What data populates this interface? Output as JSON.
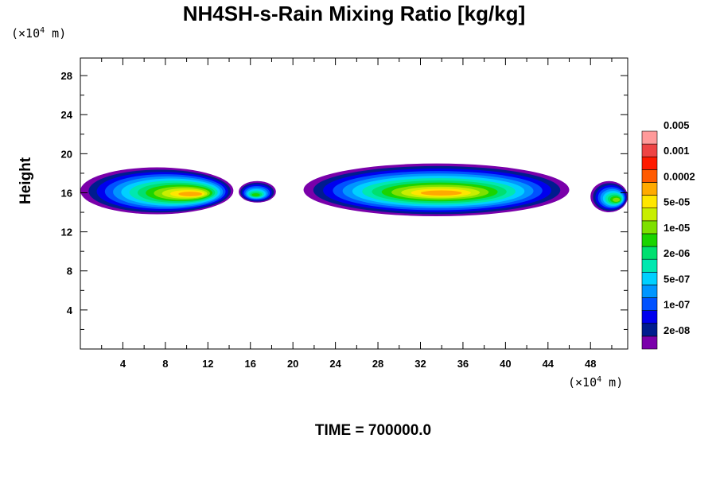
{
  "chart_data": {
    "type": "heatmap",
    "title": "NH4SH-s-Rain Mixing Ratio [kg/kg]",
    "ylabel": "Height",
    "xlabel": "",
    "y_unit": {
      "prefix": "(×10",
      "exp": "4",
      "suffix": " m)"
    },
    "x_unit": {
      "prefix": "(×10",
      "exp": "4",
      "suffix": " m)"
    },
    "xlim": [
      0,
      51.5
    ],
    "ylim": [
      0,
      29.8
    ],
    "x_ticks": [
      4,
      8,
      12,
      16,
      20,
      24,
      28,
      32,
      36,
      40,
      44,
      48
    ],
    "y_ticks": [
      4,
      8,
      12,
      16,
      20,
      24,
      28
    ],
    "grid": false,
    "time_label": "TIME = 700000.0",
    "colorbar": {
      "colors": [
        "#7a00aa",
        "#001c8e",
        "#0000ee",
        "#0052ff",
        "#0096ff",
        "#00d0ff",
        "#00e8b0",
        "#00e070",
        "#1ad400",
        "#7ee000",
        "#c8ee00",
        "#ffe600",
        "#ffaa00",
        "#ff5a00",
        "#ff1a00",
        "#ee4444",
        "#ff9a9a"
      ],
      "labels": [
        "2e-08",
        "1e-07",
        "5e-07",
        "2e-06",
        "1e-05",
        "5e-05",
        "0.0002",
        "0.001",
        "0.005"
      ]
    },
    "cloud_bands": [
      {
        "x0": 0.0,
        "x1": 14.4,
        "y_low": 13.8,
        "y_high": 18.6,
        "peak_x": 10.6,
        "peak_level": 12
      },
      {
        "x0": 14.9,
        "x1": 18.4,
        "y_low": 15.0,
        "y_high": 17.2,
        "peak_x": 16.5,
        "peak_level": 8
      },
      {
        "x0": 21.0,
        "x1": 46.0,
        "y_low": 13.6,
        "y_high": 19.0,
        "peak_x": 34.0,
        "peak_level": 12
      },
      {
        "x0": 48.0,
        "x1": 51.5,
        "y_low": 14.0,
        "y_high": 17.2,
        "peak_x": 50.5,
        "peak_level": 9
      }
    ]
  }
}
